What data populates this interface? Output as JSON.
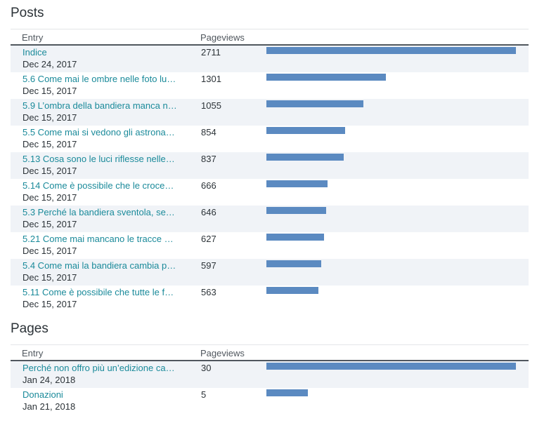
{
  "posts": {
    "title": "Posts",
    "col_entry": "Entry",
    "col_views": "Pageviews",
    "max": 2711,
    "rows": [
      {
        "title": "Indice",
        "date": "Dec 24, 2017",
        "views": 2711
      },
      {
        "title": "5.6 Come mai le ombre nelle foto lu…",
        "date": "Dec 15, 2017",
        "views": 1301
      },
      {
        "title": "5.9 L’ombra della bandiera manca n…",
        "date": "Dec 15, 2017",
        "views": 1055
      },
      {
        "title": "5.5 Come mai si vedono gli astrona…",
        "date": "Dec 15, 2017",
        "views": 854
      },
      {
        "title": "5.13 Cosa sono le luci riflesse nelle…",
        "date": "Dec 15, 2017",
        "views": 837
      },
      {
        "title": "5.14 Come è possibile che le croce…",
        "date": "Dec 15, 2017",
        "views": 666
      },
      {
        "title": "5.3 Perché la bandiera sventola, se…",
        "date": "Dec 15, 2017",
        "views": 646
      },
      {
        "title": "5.21 Come mai mancano le tracce …",
        "date": "Dec 15, 2017",
        "views": 627
      },
      {
        "title": "5.4 Come mai la bandiera cambia p…",
        "date": "Dec 15, 2017",
        "views": 597
      },
      {
        "title": "5.11 Come è possibile che tutte le f…",
        "date": "Dec 15, 2017",
        "views": 563
      }
    ]
  },
  "pages": {
    "title": "Pages",
    "col_entry": "Entry",
    "col_views": "Pageviews",
    "max": 30,
    "rows": [
      {
        "title": "Perché non offro più un’edizione ca…",
        "date": "Jan 24, 2018",
        "views": 30
      },
      {
        "title": "Donazioni",
        "date": "Jan 21, 2018",
        "views": 5
      }
    ]
  },
  "colors": {
    "bar": "#5b8ac1",
    "link": "#1a8a9a",
    "alt_row": "#f0f3f7"
  }
}
